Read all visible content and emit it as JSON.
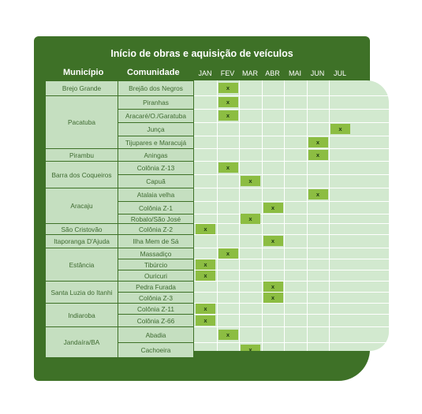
{
  "title": "Início de obras e aquisição de veículos",
  "columns": {
    "municipio": "Município",
    "comunidade": "Comunidade"
  },
  "months": [
    "JAN",
    "FEV",
    "MAR",
    "ABR",
    "MAI",
    "JUN",
    "JUL"
  ],
  "municipios": [
    "Brejo Grande",
    "Pacatuba",
    "Pirambu",
    "Barra dos Coqueiros",
    "Aracaju",
    "São Cristovão",
    "Itaporanga D'Ajuda",
    "Estância",
    "Santa Luzia do Itanhi",
    "Indiaroba",
    "Jandaíra/BA"
  ],
  "comunidades": [
    "Brejão dos Negros",
    "Piranhas",
    "Aracaré/O./Garatuba",
    "Junça",
    "Tijupares e Maracujá",
    "Aningas",
    "Colônia Z-13",
    "Capuã",
    "Atalaia velha",
    "Colônia Z-1",
    "Robalo/São José",
    "Colônia Z-2",
    "Ilha Mem de Sá",
    "Massadiço",
    "Tibúrcio",
    "Ouricuri",
    "Pedra Furada",
    "Colônia Z-3",
    "Colônia Z-11",
    "Colônia Z-66",
    "Abadia",
    "Cachoeira"
  ],
  "mark": "x",
  "schedule": [
    {
      "comunidade": "Brejão dos Negros",
      "month": "FEV"
    },
    {
      "comunidade": "Piranhas",
      "month": "FEV"
    },
    {
      "comunidade": "Aracaré/O./Garatuba",
      "month": "FEV"
    },
    {
      "comunidade": "Junça",
      "month": "JUL"
    },
    {
      "comunidade": "Tijupares e Maracujá",
      "month": "JUN"
    },
    {
      "comunidade": "Aningas",
      "month": "JUN"
    },
    {
      "comunidade": "Colônia Z-13",
      "month": "FEV"
    },
    {
      "comunidade": "Capuã",
      "month": "MAR"
    },
    {
      "comunidade": "Atalaia velha",
      "month": "JUN"
    },
    {
      "comunidade": "Colônia Z-1",
      "month": "ABR"
    },
    {
      "comunidade": "Robalo/São José",
      "month": "MAR"
    },
    {
      "comunidade": "Colônia Z-2",
      "month": "JAN"
    },
    {
      "comunidade": "Ilha Mem de Sá",
      "month": "ABR"
    },
    {
      "comunidade": "Massadiço",
      "month": "FEV"
    },
    {
      "comunidade": "Tibúrcio",
      "month": "JAN"
    },
    {
      "comunidade": "Ouricuri",
      "month": "JAN"
    },
    {
      "comunidade": "Pedra Furada",
      "month": "ABR"
    },
    {
      "comunidade": "Colônia Z-3",
      "month": "ABR"
    },
    {
      "comunidade": "Colônia Z-11",
      "month": "JAN"
    },
    {
      "comunidade": "Colônia Z-66",
      "month": "JAN"
    },
    {
      "comunidade": "Abadia",
      "month": "FEV"
    },
    {
      "comunidade": "Cachoeira",
      "month": "MAR"
    }
  ],
  "colors": {
    "panel": "#3e7127",
    "cell": "#d2e9cf",
    "mark": "#8cbd42"
  }
}
